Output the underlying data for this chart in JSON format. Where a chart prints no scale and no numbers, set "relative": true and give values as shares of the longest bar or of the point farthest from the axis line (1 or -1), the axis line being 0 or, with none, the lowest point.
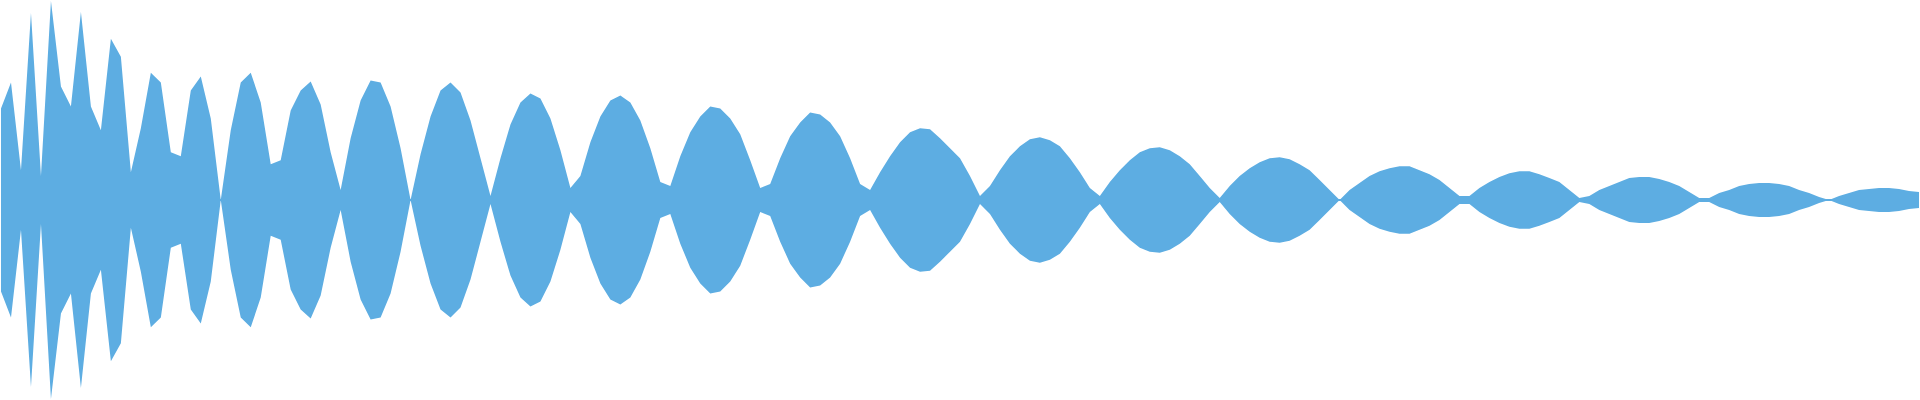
{
  "chart_data": {
    "type": "area",
    "relative": true,
    "ref_lines": [
      {
        "axis": "y",
        "value": 0,
        "color": "#5dade2"
      }
    ],
    "categories": [
      null,
      null,
      null,
      null,
      null,
      null,
      null,
      null,
      null,
      null,
      null,
      null,
      null,
      null,
      null,
      null,
      null,
      null,
      null,
      null,
      null,
      null,
      null,
      null,
      null,
      null,
      null,
      null,
      null,
      null,
      null,
      null,
      null,
      null,
      null,
      null,
      null,
      null,
      null,
      null,
      null,
      null,
      null,
      null,
      null,
      null,
      null,
      null,
      null,
      null,
      null,
      null,
      null,
      null,
      null,
      null,
      null,
      null,
      null,
      null,
      null,
      null,
      null,
      null,
      null,
      null,
      null,
      null,
      null,
      null,
      null,
      null,
      null,
      null,
      null,
      null,
      null,
      null,
      null,
      null,
      null,
      null,
      null,
      null,
      null,
      null,
      null,
      null,
      null,
      null,
      null,
      null,
      null,
      null,
      null,
      null,
      null,
      null,
      null,
      null,
      null,
      null,
      null,
      null,
      null,
      null,
      null,
      null,
      null,
      null,
      null,
      null,
      null,
      null,
      null,
      null,
      null,
      null,
      null,
      null,
      null,
      null,
      null,
      null,
      null,
      null,
      null,
      null,
      null,
      null,
      null,
      null,
      null,
      null,
      null,
      null,
      null,
      null,
      null,
      null,
      null,
      null,
      null,
      null,
      null,
      null,
      null,
      null,
      null,
      null,
      null,
      null,
      null,
      null,
      null,
      null,
      null,
      null,
      null,
      null,
      null,
      null,
      null,
      null,
      null,
      null,
      null,
      null,
      null,
      null,
      null,
      null,
      null,
      null,
      null,
      null,
      null,
      null,
      null,
      null,
      null,
      null,
      null,
      null,
      null,
      null,
      null,
      null,
      null,
      null,
      null,
      null,
      null
    ],
    "series": [
      {
        "color": "#5dade2",
        "values": [
          0.46,
          0.59,
          0.15,
          0.94,
          0.12,
          1,
          0.57,
          0.47,
          0.945,
          0.47,
          0.35,
          0.81,
          0.72,
          0.14,
          0.36,
          0.64,
          0.59,
          0.24,
          0.22,
          0.55,
          0.62,
          0.41,
          0,
          0.35,
          0.59,
          0.64,
          0.49,
          0.18,
          0.2,
          0.45,
          0.55,
          0.595,
          0.48,
          0.24,
          0.05,
          0.31,
          0.5,
          0.6,
          0.59,
          0.47,
          0.26,
          0,
          0.23,
          0.42,
          0.55,
          0.59,
          0.54,
          0.4,
          0.21,
          0.02,
          0.21,
          0.38,
          0.49,
          0.535,
          0.51,
          0.41,
          0.25,
          0.06,
          0.12,
          0.29,
          0.42,
          0.5,
          0.525,
          0.49,
          0.4,
          0.26,
          0.09,
          0.07,
          0.22,
          0.34,
          0.42,
          0.47,
          0.46,
          0.41,
          0.33,
          0.2,
          0.06,
          0.08,
          0.21,
          0.32,
          0.39,
          0.44,
          0.43,
          0.39,
          0.32,
          0.21,
          0.08,
          0.05,
          0.14,
          0.22,
          0.29,
          0.34,
          0.36,
          0.355,
          0.31,
          0.26,
          0.21,
          0.12,
          0.02,
          0.07,
          0.15,
          0.22,
          0.27,
          0.305,
          0.315,
          0.3,
          0.27,
          0.21,
          0.14,
          0.06,
          0.02,
          0.09,
          0.15,
          0.2,
          0.24,
          0.26,
          0.265,
          0.25,
          0.22,
          0.18,
          0.12,
          0.06,
          0.01,
          0.07,
          0.12,
          0.16,
          0.19,
          0.21,
          0.215,
          0.205,
          0.18,
          0.15,
          0.1,
          0.05,
          0,
          0.05,
          0.085,
          0.12,
          0.145,
          0.16,
          0.17,
          0.17,
          0.15,
          0.13,
          0.1,
          0.06,
          0.02,
          0.02,
          0.06,
          0.09,
          0.115,
          0.135,
          0.145,
          0.145,
          0.13,
          0.11,
          0.09,
          0.05,
          0.01,
          0.02,
          0.05,
          0.07,
          0.09,
          0.11,
          0.115,
          0.115,
          0.105,
          0.09,
          0.07,
          0.04,
          0.01,
          0.01,
          0.035,
          0.05,
          0.07,
          0.08,
          0.085,
          0.085,
          0.08,
          0.07,
          0.05,
          0.035,
          0.015,
          0,
          0.02,
          0.035,
          0.05,
          0.055,
          0.06,
          0.06,
          0.055,
          0.045,
          0.04
        ]
      },
      {
        "color": "#5dade2",
        "values": [
          -0.46,
          -0.59,
          -0.15,
          -0.94,
          -0.12,
          -1,
          -0.57,
          -0.47,
          -0.945,
          -0.47,
          -0.35,
          -0.81,
          -0.72,
          -0.14,
          -0.36,
          -0.64,
          -0.59,
          -0.24,
          -0.22,
          -0.55,
          -0.62,
          -0.41,
          0,
          -0.35,
          -0.59,
          -0.64,
          -0.49,
          -0.18,
          -0.2,
          -0.45,
          -0.55,
          -0.595,
          -0.48,
          -0.24,
          -0.05,
          -0.31,
          -0.5,
          -0.6,
          -0.59,
          -0.47,
          -0.26,
          0,
          -0.23,
          -0.42,
          -0.55,
          -0.59,
          -0.54,
          -0.4,
          -0.21,
          -0.02,
          -0.21,
          -0.38,
          -0.49,
          -0.535,
          -0.51,
          -0.41,
          -0.25,
          -0.06,
          -0.12,
          -0.29,
          -0.42,
          -0.5,
          -0.525,
          -0.49,
          -0.4,
          -0.26,
          -0.09,
          -0.07,
          -0.22,
          -0.34,
          -0.42,
          -0.47,
          -0.46,
          -0.41,
          -0.33,
          -0.2,
          -0.06,
          -0.08,
          -0.21,
          -0.32,
          -0.39,
          -0.44,
          -0.43,
          -0.39,
          -0.32,
          -0.21,
          -0.08,
          -0.05,
          -0.14,
          -0.22,
          -0.29,
          -0.34,
          -0.36,
          -0.355,
          -0.31,
          -0.26,
          -0.21,
          -0.12,
          -0.02,
          -0.07,
          -0.15,
          -0.22,
          -0.27,
          -0.305,
          -0.315,
          -0.3,
          -0.27,
          -0.21,
          -0.14,
          -0.06,
          -0.02,
          -0.09,
          -0.15,
          -0.2,
          -0.24,
          -0.26,
          -0.265,
          -0.25,
          -0.22,
          -0.18,
          -0.12,
          -0.06,
          -0.01,
          -0.07,
          -0.12,
          -0.16,
          -0.19,
          -0.21,
          -0.215,
          -0.205,
          -0.18,
          -0.15,
          -0.1,
          -0.05,
          0,
          -0.05,
          -0.085,
          -0.12,
          -0.145,
          -0.16,
          -0.17,
          -0.17,
          -0.15,
          -0.13,
          -0.1,
          -0.06,
          -0.02,
          -0.02,
          -0.06,
          -0.09,
          -0.115,
          -0.135,
          -0.145,
          -0.145,
          -0.13,
          -0.11,
          -0.09,
          -0.05,
          -0.01,
          -0.02,
          -0.05,
          -0.07,
          -0.09,
          -0.11,
          -0.115,
          -0.115,
          -0.105,
          -0.09,
          -0.07,
          -0.04,
          -0.01,
          -0.01,
          -0.035,
          -0.05,
          -0.07,
          -0.08,
          -0.085,
          -0.085,
          -0.08,
          -0.07,
          -0.05,
          -0.035,
          -0.015,
          0,
          -0.02,
          -0.035,
          -0.05,
          -0.055,
          -0.06,
          -0.06,
          -0.055,
          -0.045,
          -0.04
        ]
      }
    ]
  }
}
